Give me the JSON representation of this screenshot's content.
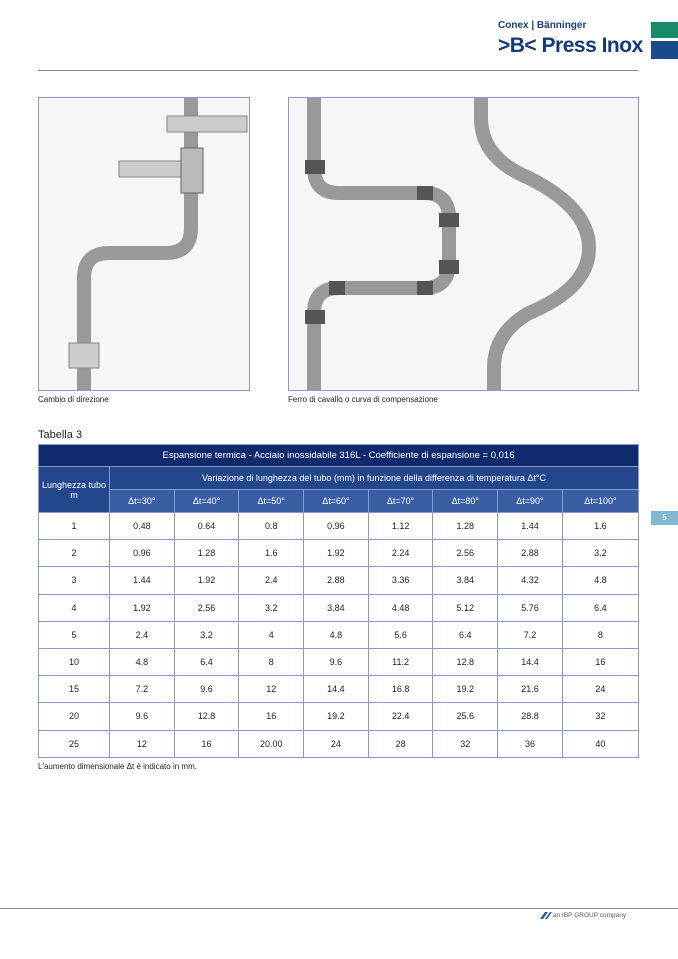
{
  "header": {
    "brand_top": "Conex | Bänninger",
    "brand_main": ">B< Press Inox",
    "colors": {
      "green": "#1b8a6b",
      "blue": "#184a8c"
    }
  },
  "figures": [
    {
      "caption": "Cambio di direzione"
    },
    {
      "caption": "Ferro di cavallo o curva di compensazione"
    }
  ],
  "table": {
    "label": "Tabella 3",
    "title": "Espansione termica - Acciaio inossidabile 316L - Coefficiente di espansione = 0,016",
    "row_header": "Lunghezza tubo m",
    "group_header": "Variazione di lunghezza del tubo (mm) in funzione della differenza di temperatura Δt°C",
    "columns": [
      "Δt=30°",
      "Δt=40°",
      "Δt=50°",
      "Δt=60°",
      "Δt=70°",
      "Δt=80°",
      "Δt=90°",
      "Δt=100°"
    ],
    "rows": [
      [
        "1",
        "0.48",
        "0.64",
        "0.8",
        "0.96",
        "1.12",
        "1.28",
        "1.44",
        "1.6"
      ],
      [
        "2",
        "0.96",
        "1.28",
        "1.6",
        "1.92",
        "2.24",
        "2.56",
        "2.88",
        "3.2"
      ],
      [
        "3",
        "1.44",
        "1.92",
        "2.4",
        "2.88",
        "3.36",
        "3.84",
        "4.32",
        "4.8"
      ],
      [
        "4",
        "1.92",
        "2.56",
        "3.2",
        "3.84",
        "4.48",
        "5.12",
        "5.76",
        "6.4"
      ],
      [
        "5",
        "2.4",
        "3.2",
        "4",
        "4.8",
        "5.6",
        "6.4",
        "7.2",
        "8"
      ],
      [
        "10",
        "4.8",
        "6.4",
        "8",
        "9.6",
        "11.2",
        "12.8",
        "14.4",
        "16"
      ],
      [
        "15",
        "7.2",
        "9.6",
        "12",
        "14.4",
        "16.8",
        "19.2",
        "21.6",
        "24"
      ],
      [
        "20",
        "9.6",
        "12.8",
        "16",
        "19.2",
        "22.4",
        "25.6",
        "28.8",
        "32"
      ],
      [
        "25",
        "12",
        "16",
        "20.00",
        "24",
        "28",
        "32",
        "36",
        "40"
      ]
    ],
    "note": "L'aumento dimensionale Δt è indicato in mm."
  },
  "side_tab": "5",
  "footer": {
    "company": "an IBP GROUP company"
  }
}
